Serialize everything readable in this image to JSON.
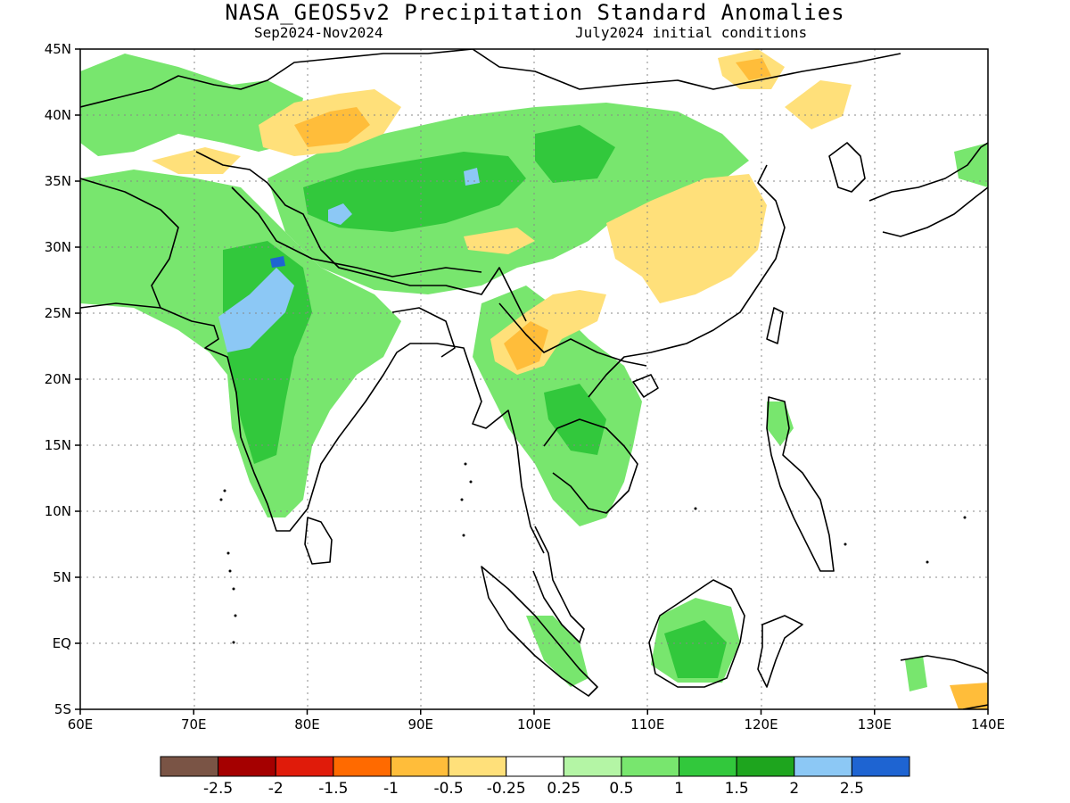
{
  "title": "NASA_GEOS5v2 Precipitation Standard Anomalies",
  "subtitle_left": "Sep2024-Nov2024",
  "subtitle_right": "July2024 initial conditions",
  "map": {
    "lon_range": [
      60,
      140
    ],
    "lat_range": [
      -5,
      45
    ],
    "grid": "dotted",
    "lon_ticks": [
      "60E",
      "70E",
      "80E",
      "90E",
      "100E",
      "110E",
      "120E",
      "130E",
      "140E"
    ],
    "lat_ticks": [
      "45N",
      "40N",
      "35N",
      "30N",
      "25N",
      "20N",
      "15N",
      "10N",
      "5N",
      "EQ",
      "5S"
    ]
  },
  "colorbar": {
    "colors": [
      "#7a5445",
      "#a50000",
      "#e01b0a",
      "#ff6a00",
      "#ffbd3a",
      "#ffe07a",
      "#ffffff",
      "#b4f5a5",
      "#78e66e",
      "#32c83c",
      "#1ea51e",
      "#8cc8f5",
      "#1e64d2"
    ],
    "labels": [
      "-2.5",
      "-2",
      "-1.5",
      "-1",
      "-0.5",
      "-0.25",
      "0.25",
      "0.5",
      "1",
      "1.5",
      "2",
      "2.5"
    ]
  }
}
